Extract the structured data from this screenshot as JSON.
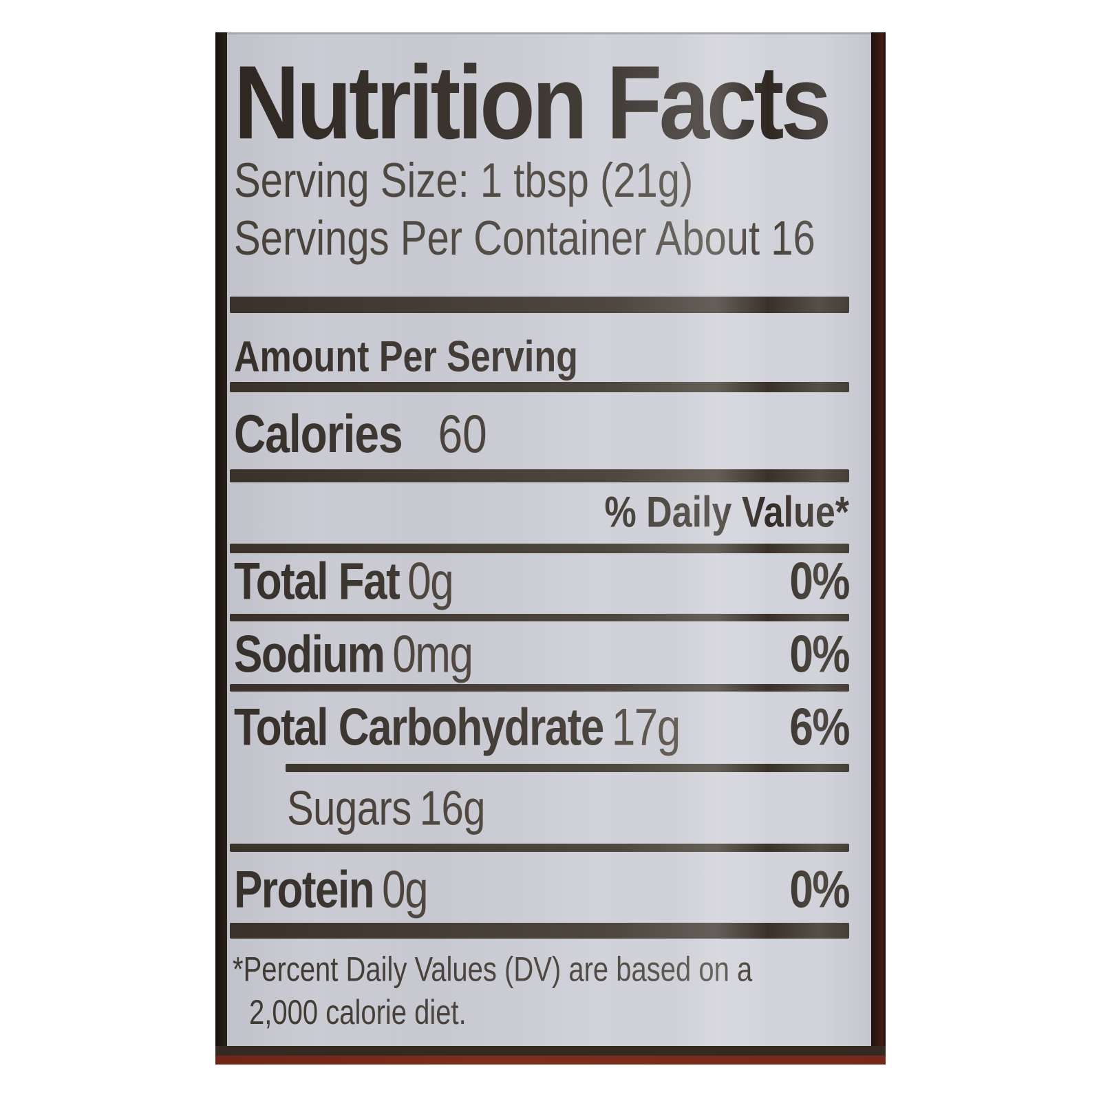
{
  "label": {
    "title": "Nutrition Facts",
    "serving_size": "Serving Size: 1 tbsp (21g)",
    "servings_per_container": "Servings Per Container About 16",
    "amount_per_serving": "Amount Per Serving",
    "calories_label": "Calories",
    "calories_value": "60",
    "daily_value_header": "% Daily Value*",
    "rows": [
      {
        "name": "Total Fat",
        "amount": "0g",
        "dv": "0%"
      },
      {
        "name": "Sodium",
        "amount": "0mg",
        "dv": "0%"
      },
      {
        "name": "Total Carbohydrate",
        "amount": "17g",
        "dv": "6%"
      },
      {
        "name": "Sugars",
        "amount": "16g",
        "dv": ""
      },
      {
        "name": "Protein",
        "amount": "0g",
        "dv": "0%"
      }
    ],
    "footnote_line1": "*Percent Daily Values (DV) are based on a",
    "footnote_line2": "2,000 calorie diet.",
    "colors": {
      "label_background": "#c9c9d2",
      "ink": "#37302a",
      "bottle_maroon": "#7b2b1b",
      "border_dark": "#2b211a",
      "page_background": "#ffffff"
    }
  }
}
